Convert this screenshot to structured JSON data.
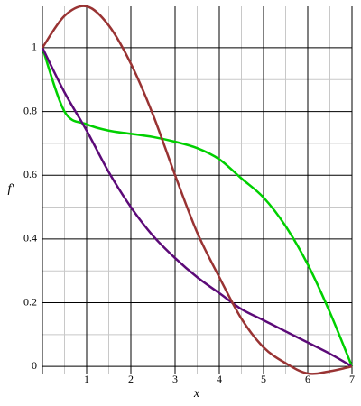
{
  "chart_data": {
    "type": "line",
    "x_label": "x",
    "y_label": "f'",
    "x": [
      0,
      0.5,
      1,
      1.5,
      2,
      2.5,
      3,
      3.5,
      4,
      4.5,
      5,
      5.5,
      6,
      6.5,
      7
    ],
    "series": [
      {
        "color": "#00d000",
        "values": [
          1,
          0.8,
          0.76,
          0.74,
          0.73,
          0.72,
          0.705,
          0.685,
          0.65,
          0.59,
          0.53,
          0.44,
          0.32,
          0.17,
          0
        ]
      },
      {
        "color": "#5c0a78",
        "values": [
          1,
          0.86,
          0.74,
          0.61,
          0.5,
          0.41,
          0.34,
          0.28,
          0.23,
          0.18,
          0.145,
          0.11,
          0.075,
          0.04,
          0
        ]
      },
      {
        "color": "#993333",
        "values": [
          1,
          1.1,
          1.13,
          1.07,
          0.95,
          0.79,
          0.6,
          0.42,
          0.28,
          0.15,
          0.06,
          0.01,
          -0.022,
          -0.015,
          0
        ]
      }
    ],
    "xlim": [
      0,
      7
    ],
    "ylim": [
      -0.025,
      1.13
    ],
    "xticks": [
      1,
      2,
      3,
      4,
      5,
      6,
      7
    ],
    "yticks": [
      0,
      0.2,
      0.4,
      0.6,
      0.8,
      1
    ],
    "grid": true,
    "minor_grid": true
  }
}
